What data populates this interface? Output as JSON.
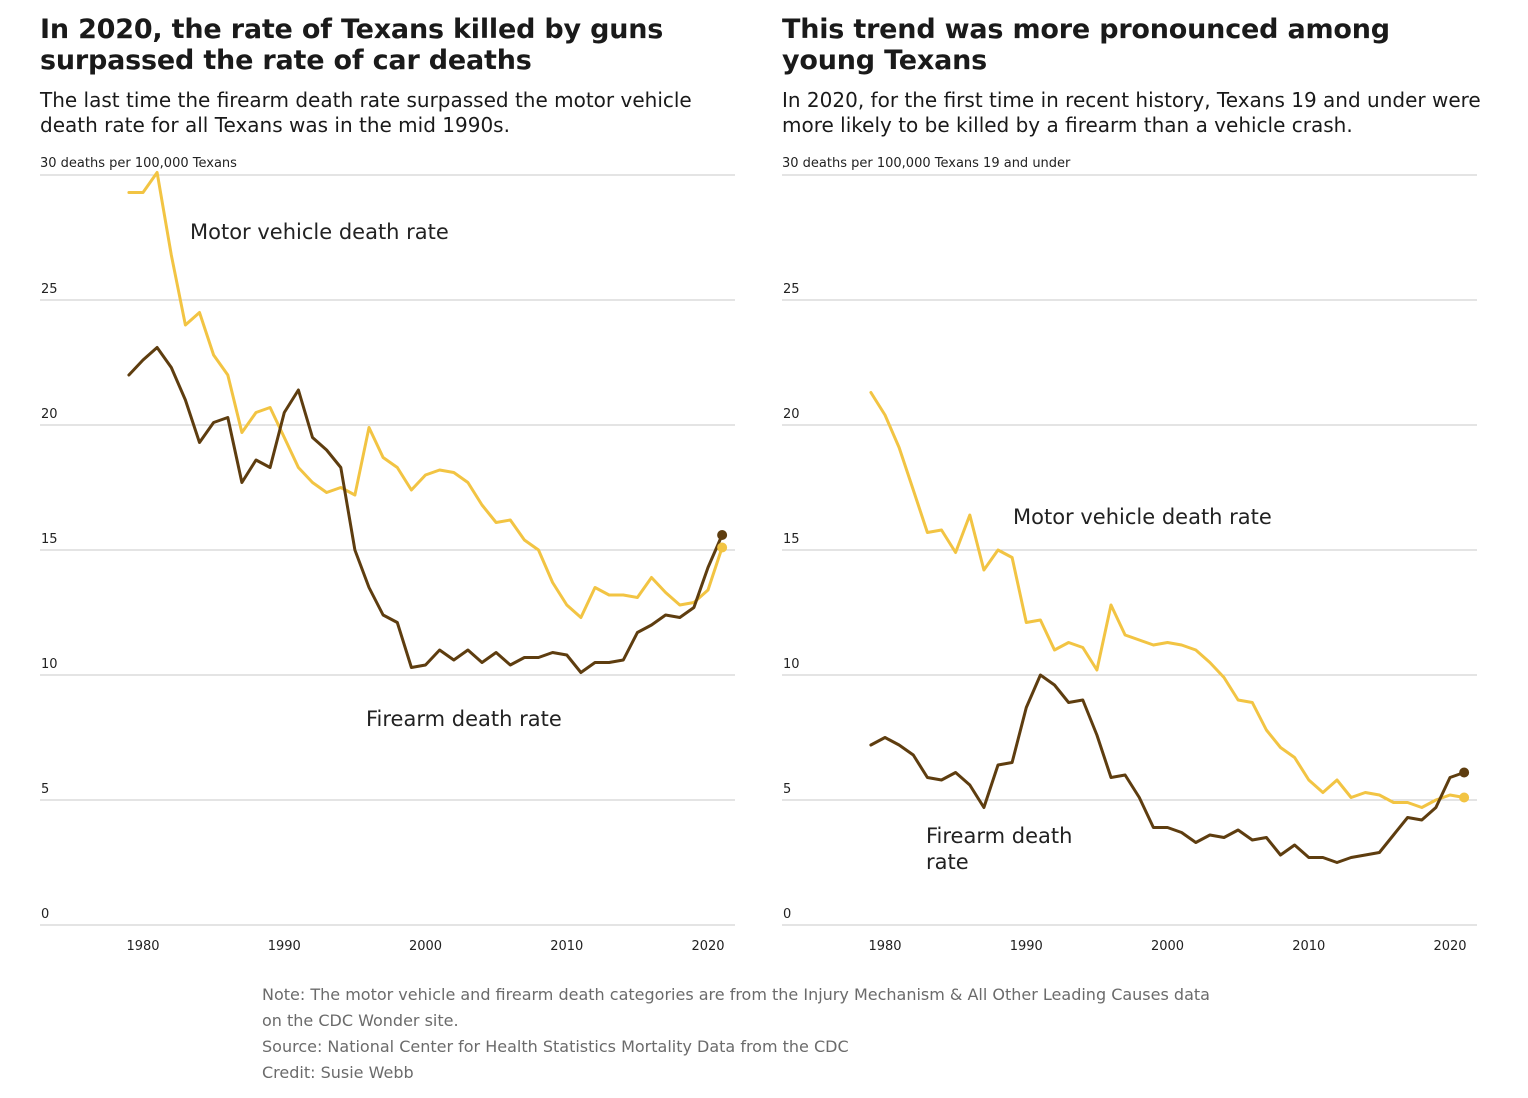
{
  "colors": {
    "motor_vehicle": "#F2C443",
    "firearm": "#5E3D0F",
    "grid": "#c8c8c8",
    "note_text": "#6b6b6b"
  },
  "chart_data": [
    {
      "type": "line",
      "title": "In 2020, the rate of Texans killed by guns surpassed the rate of car deaths",
      "subtitle": "The last time the firearm death rate surpassed the motor vehicle death rate for all Texans was in the mid 1990s.",
      "unit_label": "30 deaths per 100,000 Texans",
      "xlabel": "",
      "ylabel": "",
      "x_ticks": [
        "1980",
        "1990",
        "2000",
        "2010",
        "2020"
      ],
      "y_ticks": [
        "0",
        "5",
        "10",
        "15",
        "20",
        "25"
      ],
      "ylim": [
        0,
        30
      ],
      "xlim": [
        1973,
        2022
      ],
      "grid": true,
      "x": [
        1979,
        1980,
        1981,
        1982,
        1983,
        1984,
        1985,
        1986,
        1987,
        1988,
        1989,
        1990,
        1991,
        1992,
        1993,
        1994,
        1995,
        1996,
        1997,
        1998,
        1999,
        2000,
        2001,
        2002,
        2003,
        2004,
        2005,
        2006,
        2007,
        2008,
        2009,
        2010,
        2011,
        2012,
        2013,
        2014,
        2015,
        2016,
        2017,
        2018,
        2019,
        2020
      ],
      "series": [
        {
          "name": "Motor vehicle death rate",
          "color_key": "motor_vehicle",
          "values": [
            29.3,
            29.3,
            30.1,
            26.8,
            24.0,
            24.5,
            22.8,
            22.0,
            19.7,
            20.5,
            20.7,
            19.5,
            18.3,
            17.7,
            17.3,
            17.5,
            17.2,
            19.9,
            18.7,
            18.3,
            17.4,
            18.0,
            18.2,
            18.1,
            17.7,
            16.8,
            16.1,
            16.2,
            15.4,
            15.0,
            13.7,
            12.8,
            12.3,
            13.5,
            13.2,
            13.2,
            13.1,
            13.9,
            13.3,
            12.8,
            12.9,
            13.4
          ]
        },
        {
          "name": "Firearm death rate",
          "color_key": "firearm",
          "values": [
            22.0,
            22.6,
            23.1,
            22.3,
            21.0,
            19.3,
            20.1,
            20.3,
            17.7,
            18.6,
            18.3,
            20.5,
            21.4,
            19.5,
            19.0,
            18.3,
            15.0,
            13.5,
            12.4,
            12.1,
            10.3,
            10.4,
            11.0,
            10.6,
            11.0,
            10.5,
            10.9,
            10.4,
            10.7,
            10.7,
            10.9,
            10.8,
            10.1,
            10.5,
            10.5,
            10.6,
            11.7,
            12.0,
            12.4,
            12.3,
            12.7,
            14.3
          ]
        }
      ],
      "end_year": 2021,
      "end_values": {
        "motor_vehicle": 15.1,
        "firearm": 15.6
      }
    },
    {
      "type": "line",
      "title": "This trend was more pronounced among young Texans",
      "subtitle": "In 2020, for the first time in recent history, Texans 19 and under were more likely to be killed by a firearm than a vehicle crash.",
      "unit_label": "30 deaths per 100,000 Texans 19 and under",
      "xlabel": "",
      "ylabel": "",
      "x_ticks": [
        "1980",
        "1990",
        "2000",
        "2010",
        "2020"
      ],
      "y_ticks": [
        "0",
        "5",
        "10",
        "15",
        "20",
        "25"
      ],
      "ylim": [
        0,
        30
      ],
      "xlim": [
        1973,
        2022
      ],
      "grid": true,
      "x": [
        1979,
        1980,
        1981,
        1982,
        1983,
        1984,
        1985,
        1986,
        1987,
        1988,
        1989,
        1990,
        1991,
        1992,
        1993,
        1994,
        1995,
        1996,
        1997,
        1998,
        1999,
        2000,
        2001,
        2002,
        2003,
        2004,
        2005,
        2006,
        2007,
        2008,
        2009,
        2010,
        2011,
        2012,
        2013,
        2014,
        2015,
        2016,
        2017,
        2018,
        2019,
        2020
      ],
      "series": [
        {
          "name": "Motor vehicle death rate",
          "color_key": "motor_vehicle",
          "values": [
            21.3,
            20.4,
            19.1,
            17.4,
            15.7,
            15.8,
            14.9,
            16.4,
            14.2,
            15.0,
            14.7,
            12.1,
            12.2,
            11.0,
            11.3,
            11.1,
            10.2,
            12.8,
            11.6,
            11.4,
            11.2,
            11.3,
            11.2,
            11.0,
            10.5,
            9.9,
            9.0,
            8.9,
            7.8,
            7.1,
            6.7,
            5.8,
            5.3,
            5.8,
            5.1,
            5.3,
            5.2,
            4.9,
            4.9,
            4.7,
            5.0,
            5.2
          ]
        },
        {
          "name": "Firearm death rate",
          "color_key": "firearm",
          "values": [
            7.2,
            7.5,
            7.2,
            6.8,
            5.9,
            5.8,
            6.1,
            5.6,
            4.7,
            6.4,
            6.5,
            8.7,
            10.0,
            9.6,
            8.9,
            9.0,
            7.6,
            5.9,
            6.0,
            5.1,
            3.9,
            3.9,
            3.7,
            3.3,
            3.6,
            3.5,
            3.8,
            3.4,
            3.5,
            2.8,
            3.2,
            2.7,
            2.7,
            2.5,
            2.7,
            2.8,
            2.9,
            3.6,
            4.3,
            4.2,
            4.7,
            5.9
          ]
        }
      ],
      "end_year": 2021,
      "end_values": {
        "motor_vehicle": 5.1,
        "firearm": 6.1
      }
    }
  ],
  "labels": {
    "left_motor": "Motor vehicle death rate",
    "left_firearm": "Firearm death rate",
    "right_motor": "Motor vehicle death rate",
    "right_firearm_line1": "Firearm death",
    "right_firearm_line2": "rate"
  },
  "notes": {
    "note_line1": "Note: The motor vehicle and firearm death categories are from the Injury Mechanism & All Other Leading Causes data",
    "note_line2": "on the CDC Wonder site.",
    "source": "Source: National Center for Health Statistics Mortality Data from the CDC",
    "credit": "Credit: Susie Webb"
  }
}
